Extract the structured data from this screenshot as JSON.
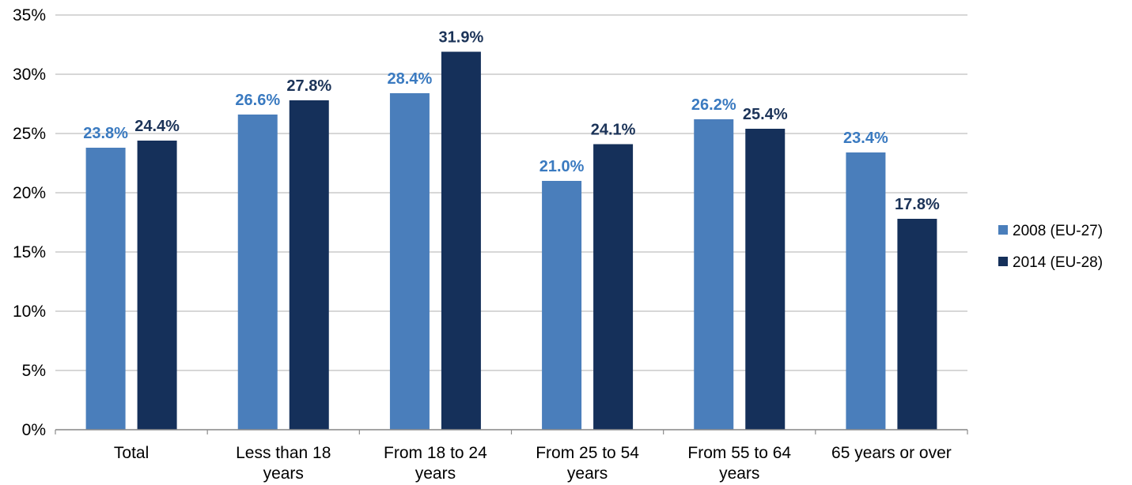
{
  "chart_data": {
    "type": "bar",
    "title": "",
    "xlabel": "",
    "ylabel": "",
    "ylim": [
      0,
      35
    ],
    "y_ticks": [
      "0%",
      "5%",
      "10%",
      "15%",
      "20%",
      "25%",
      "30%",
      "35%"
    ],
    "y_tick_values": [
      0,
      5,
      10,
      15,
      20,
      25,
      30,
      35
    ],
    "grid": true,
    "legend_position": "right",
    "categories": [
      [
        "Total"
      ],
      [
        "Less than 18",
        "years"
      ],
      [
        "From 18 to 24",
        "years"
      ],
      [
        "From 25 to 54",
        "years"
      ],
      [
        "From 55 to 64",
        "years"
      ],
      [
        "65 years or over"
      ]
    ],
    "series": [
      {
        "name": "2008 (EU-27)",
        "color": "#4a7ebb",
        "label_color": "#3a7ac0",
        "values": [
          23.8,
          26.6,
          28.4,
          21.0,
          26.2,
          23.4
        ],
        "labels": [
          "23.8%",
          "26.6%",
          "28.4%",
          "21.0%",
          "26.2%",
          "23.4%"
        ]
      },
      {
        "name": "2014 (EU-28)",
        "color": "#15305a",
        "label_color": "#1b3358",
        "values": [
          24.4,
          27.8,
          31.9,
          24.1,
          25.4,
          17.8
        ],
        "labels": [
          "24.4%",
          "27.8%",
          "31.9%",
          "24.1%",
          "25.4%",
          "17.8%"
        ]
      }
    ]
  }
}
